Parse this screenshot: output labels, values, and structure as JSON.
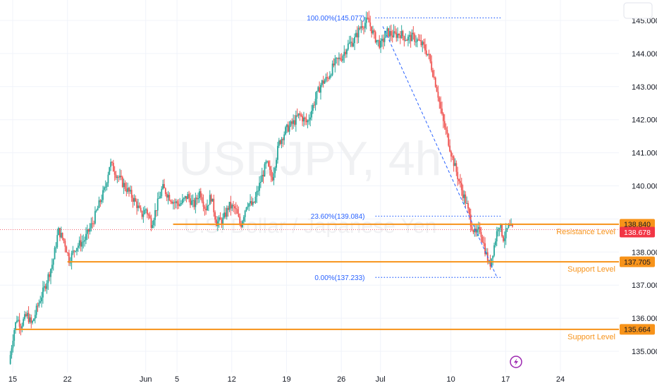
{
  "chart_data": {
    "type": "candlestick",
    "symbol_watermark": "USDJPY, 4h",
    "name_watermark": "U.S. Dollar / Japanese Yen",
    "x_ticks": [
      {
        "label": "15",
        "pos": 0.0
      },
      {
        "label": "22",
        "pos": 7.0
      },
      {
        "label": "Jun",
        "pos": 17.0
      },
      {
        "label": "5",
        "pos": 21.0
      },
      {
        "label": "12",
        "pos": 28.0
      },
      {
        "label": "19",
        "pos": 35.0
      },
      {
        "label": "26",
        "pos": 42.0
      },
      {
        "label": "Jul",
        "pos": 47.0
      },
      {
        "label": "10",
        "pos": 56.0
      },
      {
        "label": "17",
        "pos": 63.0
      },
      {
        "label": "24",
        "pos": 70.0
      }
    ],
    "y_ticks": [
      135,
      136,
      137,
      138,
      139,
      140,
      141,
      142,
      143,
      144,
      145
    ],
    "y_tick_labels": [
      "135.000",
      "136.000",
      "137.000",
      "138.000",
      "",
      "140.000",
      "141.000",
      "142.000",
      "143.000",
      "144.000",
      "145.000"
    ],
    "ylim": [
      134.55,
      145.55
    ],
    "xlim": [
      -1.2,
      76.5
    ],
    "path_points": [
      [
        -0.3,
        134.62
      ],
      [
        0.3,
        135.6
      ],
      [
        0.7,
        136.0
      ],
      [
        1.2,
        135.8
      ],
      [
        2.0,
        136.1
      ],
      [
        2.6,
        135.8
      ],
      [
        3.4,
        136.4
      ],
      [
        4.2,
        136.9
      ],
      [
        5.3,
        137.7
      ],
      [
        6.0,
        138.65
      ],
      [
        6.8,
        138.3
      ],
      [
        7.4,
        137.75
      ],
      [
        8.2,
        138.15
      ],
      [
        9.3,
        138.35
      ],
      [
        10.4,
        138.9
      ],
      [
        11.3,
        139.5
      ],
      [
        12.0,
        139.95
      ],
      [
        12.6,
        140.7
      ],
      [
        13.3,
        140.4
      ],
      [
        14.0,
        140.15
      ],
      [
        15.2,
        139.75
      ],
      [
        16.0,
        139.45
      ],
      [
        16.6,
        139.1
      ],
      [
        17.2,
        139.3
      ],
      [
        17.9,
        138.85
      ],
      [
        18.6,
        139.4
      ],
      [
        19.3,
        139.95
      ],
      [
        20.1,
        139.7
      ],
      [
        20.8,
        139.5
      ],
      [
        21.6,
        139.45
      ],
      [
        22.5,
        139.7
      ],
      [
        23.3,
        139.4
      ],
      [
        24.1,
        139.85
      ],
      [
        24.8,
        139.3
      ],
      [
        25.5,
        139.7
      ],
      [
        26.2,
        138.9
      ],
      [
        27.0,
        138.95
      ],
      [
        27.8,
        139.4
      ],
      [
        28.6,
        139.3
      ],
      [
        29.3,
        138.8
      ],
      [
        30.1,
        139.5
      ],
      [
        30.9,
        139.4
      ],
      [
        31.8,
        140.1
      ],
      [
        32.6,
        140.7
      ],
      [
        33.3,
        140.2
      ],
      [
        34.2,
        141.3
      ],
      [
        35.1,
        141.7
      ],
      [
        36.0,
        141.9
      ],
      [
        36.8,
        142.15
      ],
      [
        37.8,
        141.9
      ],
      [
        38.8,
        142.6
      ],
      [
        39.6,
        143.1
      ],
      [
        40.4,
        143.25
      ],
      [
        41.3,
        143.7
      ],
      [
        42.2,
        143.9
      ],
      [
        43.0,
        144.25
      ],
      [
        43.8,
        144.4
      ],
      [
        44.7,
        144.85
      ],
      [
        45.6,
        145.0
      ],
      [
        46.4,
        144.5
      ],
      [
        47.2,
        144.25
      ],
      [
        48.0,
        144.65
      ],
      [
        48.8,
        144.55
      ],
      [
        49.7,
        144.6
      ],
      [
        50.5,
        144.45
      ],
      [
        51.3,
        144.5
      ],
      [
        52.1,
        144.35
      ],
      [
        52.7,
        144.2
      ],
      [
        53.3,
        143.95
      ],
      [
        53.9,
        143.4
      ],
      [
        54.5,
        142.8
      ],
      [
        55.1,
        142.0
      ],
      [
        55.7,
        141.5
      ],
      [
        56.3,
        140.9
      ],
      [
        56.9,
        140.4
      ],
      [
        57.5,
        139.9
      ],
      [
        58.1,
        139.5
      ],
      [
        58.7,
        138.9
      ],
      [
        59.3,
        138.5
      ],
      [
        59.9,
        138.7
      ],
      [
        60.5,
        138.1
      ],
      [
        61.1,
        137.55
      ],
      [
        61.7,
        138.2
      ],
      [
        62.3,
        138.9
      ],
      [
        62.9,
        138.4
      ],
      [
        63.5,
        138.75
      ],
      [
        64.0,
        138.68
      ]
    ],
    "fibonacci": {
      "levels": [
        {
          "label": "100.00%(145.077)",
          "value": 145.077
        },
        {
          "label": "23.60%(139.084)",
          "value": 139.084
        },
        {
          "label": "0.00%(137.233)",
          "value": 137.233
        }
      ],
      "x_start": 46.0,
      "x_end": 61.9,
      "line_x_end": 62.4,
      "text_x_end": 45.0
    },
    "horizontal_levels": [
      {
        "price": 138.84,
        "tag": "138.840",
        "label": "Resistance Level",
        "x_start": 20.5
      },
      {
        "price": 137.705,
        "tag": "137.705",
        "label": "Support Level",
        "x_start": 7.0
      },
      {
        "price": 135.664,
        "tag": "135.664",
        "label": "Support Level",
        "x_start": 0.4
      }
    ],
    "current_price": {
      "value": 138.678,
      "tag": "138.678"
    },
    "colors": {
      "up": "#26a69a",
      "down": "#ef5350",
      "level": "#f7931a",
      "fib": "#2962ff",
      "current": "#f23645",
      "grid": "#f0f3fa",
      "axis_text": "#131722",
      "watermark": "#eef0f3",
      "lightning": "#9c27b0"
    }
  },
  "icons": {
    "lightning": "lightning-bolt-icon",
    "settings_box": "chart-settings-box"
  }
}
